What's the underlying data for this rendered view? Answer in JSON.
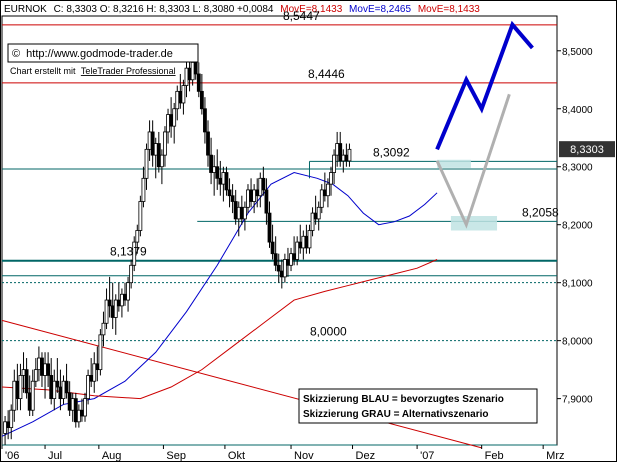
{
  "header": {
    "symbol": "EURNOK",
    "quote": "C: 8,3303  O: 8,3216  H: 8,3303  L: 8,3080  +0,0084",
    "ma1": "MovE=8,1433",
    "ma2": "MovE=8,2465",
    "ma3": "MovE=8,1433",
    "ma1_color": "#cc0000",
    "ma2_color": "#0000cc",
    "ma3_color": "#cc0000"
  },
  "copyright": {
    "symbol": "©",
    "url": "http://www.godmode-trader.de",
    "created_by": "Chart erstellt mit",
    "software": "TeleTrader Professional"
  },
  "legend": {
    "blue": "Skizzierung BLAU = bevorzugtes Szenario",
    "gray": "Skizzierung GRAU = Alternativszenario"
  },
  "chart_data": {
    "type": "candlestick",
    "instrument": "EURNOK",
    "y_axis": {
      "side": "right",
      "ticks": [
        7.9,
        8.0,
        8.1,
        8.2,
        8.3,
        8.4,
        8.5
      ],
      "tick_labels": [
        "7,9000",
        "8,0000",
        "8,1000",
        "8,2000",
        "8,3000",
        "8,4000",
        "8,5000"
      ],
      "range": [
        7.82,
        8.56
      ]
    },
    "x_axis": {
      "labels": [
        "'06",
        "Jul",
        "Aug",
        "Sep",
        "Okt",
        "Nov",
        "Dez",
        "'07",
        "Feb",
        "Mrz"
      ],
      "positions": [
        0,
        28,
        63,
        105,
        145,
        188,
        228,
        270,
        312,
        352
      ],
      "range": [
        0,
        361
      ]
    },
    "last_price": 8.3303,
    "last_price_label": "8,3303",
    "horizontal_levels": [
      {
        "value": 8.5447,
        "label": "8,5447",
        "color": "#cc0000"
      },
      {
        "value": 8.4446,
        "label": "8,4446",
        "color": "#cc0000"
      },
      {
        "value": 8.3092,
        "label": "8,3092",
        "color": "#006666"
      },
      {
        "value": 8.2058,
        "label": "8,2058",
        "color": "#006666"
      },
      {
        "value": 8.1379,
        "label": "8,1379",
        "color": "#006666"
      },
      {
        "value": 8.0,
        "label": "8,0000",
        "color": "#006666"
      }
    ],
    "levels_no_label": [
      8.296,
      8.112,
      8.1,
      7.82
    ],
    "series": [
      {
        "name": "MovE 8,2465",
        "type": "line",
        "color": "#0000cc",
        "x": [
          0,
          20,
          40,
          60,
          80,
          100,
          120,
          140,
          160,
          175,
          190,
          205,
          215,
          225,
          235,
          245,
          255,
          265,
          275,
          283
        ],
        "y": [
          7.835,
          7.86,
          7.89,
          7.9,
          7.93,
          7.98,
          8.05,
          8.13,
          8.22,
          8.27,
          8.29,
          8.28,
          8.27,
          8.25,
          8.22,
          8.2,
          8.205,
          8.215,
          8.235,
          8.255
        ]
      },
      {
        "name": "MovE 8,1433",
        "type": "line",
        "color": "#cc0000",
        "x": [
          0,
          30,
          60,
          90,
          110,
          130,
          150,
          170,
          190,
          210,
          225,
          240,
          255,
          270,
          283
        ],
        "y": [
          7.92,
          7.915,
          7.905,
          7.9,
          7.92,
          7.95,
          7.99,
          8.03,
          8.07,
          8.085,
          8.095,
          8.105,
          8.115,
          8.125,
          8.14
        ]
      }
    ],
    "trendline": {
      "x": [
        0,
        312
      ],
      "y": [
        8.035,
        7.815
      ],
      "color": "#cc0000"
    },
    "scenario_blue": {
      "x": [
        283,
        302,
        312,
        332,
        345
      ],
      "y": [
        8.33,
        8.45,
        8.4,
        8.545,
        8.505
      ],
      "color": "#0000cc"
    },
    "scenario_gray": {
      "x": [
        283,
        302,
        330
      ],
      "y": [
        8.31,
        8.2,
        8.425
      ],
      "color": "#b0b0b0"
    },
    "target_zone": {
      "x": [
        292,
        322
      ],
      "y_low": 8.19,
      "y_high": 8.215,
      "color": "#bfe3e3"
    },
    "resistance_zone": {
      "x": [
        283,
        305
      ],
      "y_low": 8.298,
      "y_high": 8.312,
      "color": "#bfe3e3"
    },
    "candles": [
      {
        "x": 2,
        "o": 7.84,
        "h": 7.87,
        "l": 7.82,
        "c": 7.86
      },
      {
        "x": 4,
        "o": 7.86,
        "h": 7.88,
        "l": 7.83,
        "c": 7.85
      },
      {
        "x": 6,
        "o": 7.85,
        "h": 7.89,
        "l": 7.83,
        "c": 7.88
      },
      {
        "x": 8,
        "o": 7.88,
        "h": 7.95,
        "l": 7.86,
        "c": 7.93
      },
      {
        "x": 10,
        "o": 7.93,
        "h": 7.96,
        "l": 7.88,
        "c": 7.9
      },
      {
        "x": 12,
        "o": 7.9,
        "h": 7.96,
        "l": 7.88,
        "c": 7.94
      },
      {
        "x": 14,
        "o": 7.94,
        "h": 7.98,
        "l": 7.91,
        "c": 7.95
      },
      {
        "x": 16,
        "o": 7.95,
        "h": 7.97,
        "l": 7.9,
        "c": 7.91
      },
      {
        "x": 18,
        "o": 7.91,
        "h": 7.94,
        "l": 7.87,
        "c": 7.88
      },
      {
        "x": 20,
        "o": 7.88,
        "h": 7.95,
        "l": 7.87,
        "c": 7.93
      },
      {
        "x": 22,
        "o": 7.93,
        "h": 7.97,
        "l": 7.92,
        "c": 7.95
      },
      {
        "x": 24,
        "o": 7.95,
        "h": 7.99,
        "l": 7.93,
        "c": 7.97
      },
      {
        "x": 26,
        "o": 7.97,
        "h": 7.98,
        "l": 7.92,
        "c": 7.94
      },
      {
        "x": 28,
        "o": 7.94,
        "h": 7.98,
        "l": 7.9,
        "c": 7.96
      },
      {
        "x": 30,
        "o": 7.96,
        "h": 7.98,
        "l": 7.92,
        "c": 7.94
      },
      {
        "x": 32,
        "o": 7.94,
        "h": 7.97,
        "l": 7.89,
        "c": 7.9
      },
      {
        "x": 34,
        "o": 7.9,
        "h": 7.95,
        "l": 7.88,
        "c": 7.93
      },
      {
        "x": 36,
        "o": 7.93,
        "h": 7.97,
        "l": 7.91,
        "c": 7.92
      },
      {
        "x": 38,
        "o": 7.92,
        "h": 7.95,
        "l": 7.88,
        "c": 7.9
      },
      {
        "x": 40,
        "o": 7.9,
        "h": 7.94,
        "l": 7.89,
        "c": 7.93
      },
      {
        "x": 42,
        "o": 7.93,
        "h": 7.96,
        "l": 7.9,
        "c": 7.91
      },
      {
        "x": 44,
        "o": 7.91,
        "h": 7.93,
        "l": 7.87,
        "c": 7.88
      },
      {
        "x": 46,
        "o": 7.88,
        "h": 7.91,
        "l": 7.86,
        "c": 7.9
      },
      {
        "x": 48,
        "o": 7.9,
        "h": 7.91,
        "l": 7.85,
        "c": 7.86
      },
      {
        "x": 50,
        "o": 7.86,
        "h": 7.89,
        "l": 7.85,
        "c": 7.88
      },
      {
        "x": 52,
        "o": 7.88,
        "h": 7.9,
        "l": 7.86,
        "c": 7.87
      },
      {
        "x": 54,
        "o": 7.87,
        "h": 7.91,
        "l": 7.86,
        "c": 7.9
      },
      {
        "x": 56,
        "o": 7.9,
        "h": 7.95,
        "l": 7.89,
        "c": 7.94
      },
      {
        "x": 58,
        "o": 7.94,
        "h": 7.97,
        "l": 7.92,
        "c": 7.93
      },
      {
        "x": 60,
        "o": 7.93,
        "h": 7.98,
        "l": 7.91,
        "c": 7.96
      },
      {
        "x": 62,
        "o": 7.96,
        "h": 7.99,
        "l": 7.93,
        "c": 7.95
      },
      {
        "x": 64,
        "o": 7.95,
        "h": 8.02,
        "l": 7.94,
        "c": 8.01
      },
      {
        "x": 66,
        "o": 8.01,
        "h": 8.05,
        "l": 7.99,
        "c": 8.03
      },
      {
        "x": 68,
        "o": 8.03,
        "h": 8.09,
        "l": 8.02,
        "c": 8.07
      },
      {
        "x": 70,
        "o": 8.07,
        "h": 8.11,
        "l": 8.04,
        "c": 8.06
      },
      {
        "x": 72,
        "o": 8.06,
        "h": 8.1,
        "l": 8.02,
        "c": 8.04
      },
      {
        "x": 74,
        "o": 8.04,
        "h": 8.08,
        "l": 8.01,
        "c": 8.07
      },
      {
        "x": 76,
        "o": 8.07,
        "h": 8.1,
        "l": 8.05,
        "c": 8.06
      },
      {
        "x": 78,
        "o": 8.06,
        "h": 8.09,
        "l": 8.04,
        "c": 8.08
      },
      {
        "x": 80,
        "o": 8.08,
        "h": 8.1,
        "l": 8.06,
        "c": 8.07
      },
      {
        "x": 82,
        "o": 8.07,
        "h": 8.11,
        "l": 8.05,
        "c": 8.1
      },
      {
        "x": 84,
        "o": 8.1,
        "h": 8.14,
        "l": 8.09,
        "c": 8.13
      },
      {
        "x": 86,
        "o": 8.13,
        "h": 8.18,
        "l": 8.12,
        "c": 8.17
      },
      {
        "x": 88,
        "o": 8.17,
        "h": 8.2,
        "l": 8.15,
        "c": 8.19
      },
      {
        "x": 90,
        "o": 8.19,
        "h": 8.25,
        "l": 8.18,
        "c": 8.24
      },
      {
        "x": 92,
        "o": 8.24,
        "h": 8.3,
        "l": 8.23,
        "c": 8.28
      },
      {
        "x": 94,
        "o": 8.28,
        "h": 8.34,
        "l": 8.26,
        "c": 8.33
      },
      {
        "x": 96,
        "o": 8.33,
        "h": 8.38,
        "l": 8.31,
        "c": 8.36
      },
      {
        "x": 98,
        "o": 8.36,
        "h": 8.38,
        "l": 8.3,
        "c": 8.32
      },
      {
        "x": 100,
        "o": 8.32,
        "h": 8.35,
        "l": 8.28,
        "c": 8.34
      },
      {
        "x": 102,
        "o": 8.34,
        "h": 8.36,
        "l": 8.29,
        "c": 8.3
      },
      {
        "x": 104,
        "o": 8.3,
        "h": 8.33,
        "l": 8.27,
        "c": 8.32
      },
      {
        "x": 106,
        "o": 8.32,
        "h": 8.37,
        "l": 8.3,
        "c": 8.36
      },
      {
        "x": 108,
        "o": 8.36,
        "h": 8.4,
        "l": 8.34,
        "c": 8.39
      },
      {
        "x": 110,
        "o": 8.39,
        "h": 8.42,
        "l": 8.35,
        "c": 8.37
      },
      {
        "x": 112,
        "o": 8.37,
        "h": 8.41,
        "l": 8.34,
        "c": 8.4
      },
      {
        "x": 114,
        "o": 8.4,
        "h": 8.44,
        "l": 8.38,
        "c": 8.43
      },
      {
        "x": 116,
        "o": 8.43,
        "h": 8.46,
        "l": 8.4,
        "c": 8.41
      },
      {
        "x": 118,
        "o": 8.41,
        "h": 8.45,
        "l": 8.39,
        "c": 8.44
      },
      {
        "x": 120,
        "o": 8.44,
        "h": 8.48,
        "l": 8.42,
        "c": 8.47
      },
      {
        "x": 122,
        "o": 8.47,
        "h": 8.49,
        "l": 8.43,
        "c": 8.45
      },
      {
        "x": 124,
        "o": 8.45,
        "h": 8.49,
        "l": 8.44,
        "c": 8.48
      },
      {
        "x": 126,
        "o": 8.48,
        "h": 8.5,
        "l": 8.45,
        "c": 8.46
      },
      {
        "x": 128,
        "o": 8.46,
        "h": 8.48,
        "l": 8.42,
        "c": 8.43
      },
      {
        "x": 130,
        "o": 8.43,
        "h": 8.46,
        "l": 8.39,
        "c": 8.4
      },
      {
        "x": 132,
        "o": 8.4,
        "h": 8.42,
        "l": 8.34,
        "c": 8.36
      },
      {
        "x": 134,
        "o": 8.36,
        "h": 8.38,
        "l": 8.3,
        "c": 8.32
      },
      {
        "x": 136,
        "o": 8.32,
        "h": 8.35,
        "l": 8.27,
        "c": 8.29
      },
      {
        "x": 138,
        "o": 8.29,
        "h": 8.32,
        "l": 8.25,
        "c": 8.3
      },
      {
        "x": 140,
        "o": 8.3,
        "h": 8.33,
        "l": 8.26,
        "c": 8.28
      },
      {
        "x": 142,
        "o": 8.28,
        "h": 8.31,
        "l": 8.25,
        "c": 8.27
      },
      {
        "x": 144,
        "o": 8.27,
        "h": 8.3,
        "l": 8.24,
        "c": 8.29
      },
      {
        "x": 146,
        "o": 8.29,
        "h": 8.3,
        "l": 8.25,
        "c": 8.26
      },
      {
        "x": 148,
        "o": 8.26,
        "h": 8.28,
        "l": 8.23,
        "c": 8.25
      },
      {
        "x": 150,
        "o": 8.25,
        "h": 8.27,
        "l": 8.22,
        "c": 8.24
      },
      {
        "x": 152,
        "o": 8.24,
        "h": 8.26,
        "l": 8.2,
        "c": 8.21
      },
      {
        "x": 154,
        "o": 8.21,
        "h": 8.24,
        "l": 8.18,
        "c": 8.23
      },
      {
        "x": 156,
        "o": 8.23,
        "h": 8.25,
        "l": 8.2,
        "c": 8.21
      },
      {
        "x": 158,
        "o": 8.21,
        "h": 8.24,
        "l": 8.19,
        "c": 8.23
      },
      {
        "x": 160,
        "o": 8.23,
        "h": 8.27,
        "l": 8.22,
        "c": 8.26
      },
      {
        "x": 162,
        "o": 8.26,
        "h": 8.28,
        "l": 8.23,
        "c": 8.24
      },
      {
        "x": 164,
        "o": 8.24,
        "h": 8.27,
        "l": 8.22,
        "c": 8.26
      },
      {
        "x": 166,
        "o": 8.26,
        "h": 8.28,
        "l": 8.23,
        "c": 8.25
      },
      {
        "x": 168,
        "o": 8.25,
        "h": 8.29,
        "l": 8.23,
        "c": 8.28
      },
      {
        "x": 170,
        "o": 8.28,
        "h": 8.3,
        "l": 8.25,
        "c": 8.26
      },
      {
        "x": 172,
        "o": 8.26,
        "h": 8.28,
        "l": 8.2,
        "c": 8.22
      },
      {
        "x": 174,
        "o": 8.22,
        "h": 8.24,
        "l": 8.16,
        "c": 8.17
      },
      {
        "x": 176,
        "o": 8.17,
        "h": 8.2,
        "l": 8.14,
        "c": 8.15
      },
      {
        "x": 178,
        "o": 8.15,
        "h": 8.18,
        "l": 8.12,
        "c": 8.13
      },
      {
        "x": 180,
        "o": 8.13,
        "h": 8.15,
        "l": 8.1,
        "c": 8.12
      },
      {
        "x": 182,
        "o": 8.12,
        "h": 8.14,
        "l": 8.09,
        "c": 8.11
      },
      {
        "x": 184,
        "o": 8.11,
        "h": 8.15,
        "l": 8.1,
        "c": 8.14
      },
      {
        "x": 186,
        "o": 8.14,
        "h": 8.16,
        "l": 8.11,
        "c": 8.13
      },
      {
        "x": 188,
        "o": 8.13,
        "h": 8.16,
        "l": 8.12,
        "c": 8.15
      },
      {
        "x": 190,
        "o": 8.15,
        "h": 8.18,
        "l": 8.13,
        "c": 8.14
      },
      {
        "x": 192,
        "o": 8.14,
        "h": 8.18,
        "l": 8.13,
        "c": 8.17
      },
      {
        "x": 194,
        "o": 8.17,
        "h": 8.2,
        "l": 8.15,
        "c": 8.16
      },
      {
        "x": 196,
        "o": 8.16,
        "h": 8.19,
        "l": 8.14,
        "c": 8.18
      },
      {
        "x": 198,
        "o": 8.18,
        "h": 8.2,
        "l": 8.15,
        "c": 8.16
      },
      {
        "x": 200,
        "o": 8.16,
        "h": 8.2,
        "l": 8.15,
        "c": 8.19
      },
      {
        "x": 202,
        "o": 8.19,
        "h": 8.23,
        "l": 8.18,
        "c": 8.22
      },
      {
        "x": 204,
        "o": 8.22,
        "h": 8.25,
        "l": 8.2,
        "c": 8.21
      },
      {
        "x": 206,
        "o": 8.21,
        "h": 8.24,
        "l": 8.19,
        "c": 8.23
      },
      {
        "x": 208,
        "o": 8.23,
        "h": 8.27,
        "l": 8.22,
        "c": 8.26
      },
      {
        "x": 210,
        "o": 8.26,
        "h": 8.29,
        "l": 8.24,
        "c": 8.25
      },
      {
        "x": 212,
        "o": 8.25,
        "h": 8.28,
        "l": 8.23,
        "c": 8.27
      },
      {
        "x": 214,
        "o": 8.27,
        "h": 8.3,
        "l": 8.25,
        "c": 8.29
      },
      {
        "x": 216,
        "o": 8.29,
        "h": 8.33,
        "l": 8.27,
        "c": 8.32
      },
      {
        "x": 218,
        "o": 8.32,
        "h": 8.36,
        "l": 8.3,
        "c": 8.34
      },
      {
        "x": 220,
        "o": 8.34,
        "h": 8.36,
        "l": 8.3,
        "c": 8.31
      },
      {
        "x": 222,
        "o": 8.31,
        "h": 8.33,
        "l": 8.29,
        "c": 8.32
      },
      {
        "x": 224,
        "o": 8.32,
        "h": 8.34,
        "l": 8.3,
        "c": 8.31
      },
      {
        "x": 226,
        "o": 8.31,
        "h": 8.34,
        "l": 8.3,
        "c": 8.33
      }
    ]
  }
}
